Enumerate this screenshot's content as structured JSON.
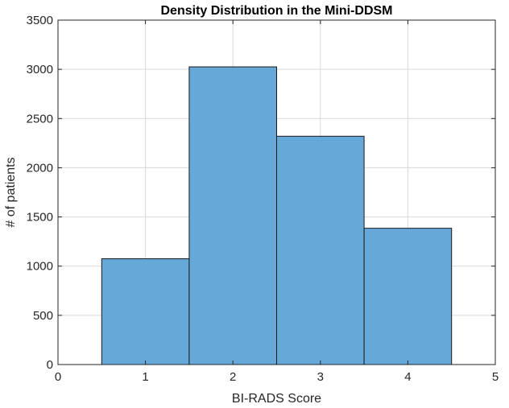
{
  "chart_data": {
    "type": "bar",
    "title": "Density Distribution in the Mini-DDSM",
    "xlabel": "BI-RADS Score",
    "ylabel": "# of patients",
    "categories": [
      1,
      2,
      3,
      4
    ],
    "values": [
      1075,
      3025,
      2320,
      1385
    ],
    "bin_width": 1,
    "xlim": [
      0,
      5
    ],
    "ylim": [
      0,
      3500
    ],
    "xticks": [
      0,
      1,
      2,
      3,
      4,
      5
    ],
    "yticks": [
      0,
      500,
      1000,
      1500,
      2000,
      2500,
      3000,
      3500
    ],
    "grid": true,
    "bar_color": "#66a9d8",
    "bar_edge_color": "#1a1a1a",
    "grid_color": "#d9d9d9"
  }
}
